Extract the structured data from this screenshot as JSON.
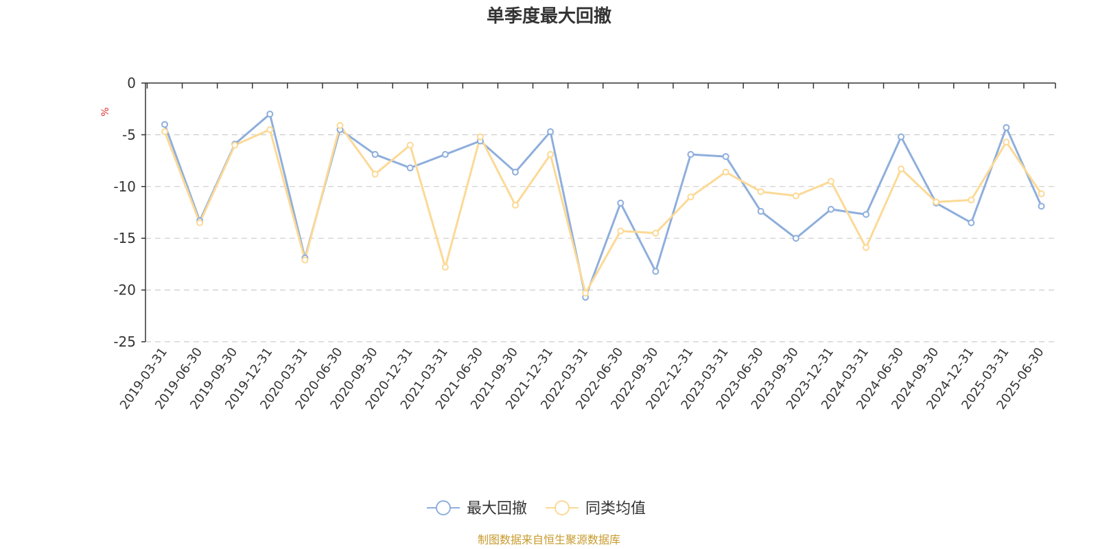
{
  "chart_data": {
    "type": "line",
    "title": "单季度最大回撤",
    "ylabel": "%",
    "ylim": [
      -25,
      0
    ],
    "yticks": [
      0,
      -5,
      -10,
      -15,
      -20,
      -25
    ],
    "grid": true,
    "legend_position": "bottom-center",
    "x": [
      "2019-03-31",
      "2019-06-30",
      "2019-09-30",
      "2019-12-31",
      "2020-03-31",
      "2020-06-30",
      "2020-09-30",
      "2020-12-31",
      "2021-03-31",
      "2021-06-30",
      "2021-09-30",
      "2021-12-31",
      "2022-03-31",
      "2022-06-30",
      "2022-09-30",
      "2022-12-31",
      "2023-03-31",
      "2023-06-30",
      "2023-09-30",
      "2023-12-31",
      "2024-03-31",
      "2024-06-30",
      "2024-09-30",
      "2024-12-31",
      "2025-03-31",
      "2025-06-30"
    ],
    "series": [
      {
        "name": "最大回撤",
        "color": "#8eaedc",
        "values": [
          -4.0,
          -13.3,
          -5.9,
          -3.0,
          -16.9,
          -4.5,
          -6.9,
          -8.2,
          -6.9,
          -5.6,
          -8.6,
          -4.7,
          -20.7,
          -11.6,
          -18.2,
          -6.9,
          -7.1,
          -12.4,
          -15.0,
          -12.2,
          -12.7,
          -5.2,
          -11.6,
          -13.5,
          -4.3,
          -11.9
        ]
      },
      {
        "name": "同类均值",
        "color": "#fcd995",
        "values": [
          -4.7,
          -13.5,
          -6.0,
          -4.5,
          -17.1,
          -4.1,
          -8.8,
          -6.0,
          -17.8,
          -5.2,
          -11.8,
          -6.9,
          -20.3,
          -14.3,
          -14.5,
          -11.0,
          -8.6,
          -10.5,
          -10.9,
          -9.5,
          -15.9,
          -8.3,
          -11.5,
          -11.3,
          -5.7,
          -10.7
        ]
      }
    ],
    "source": "制图数据来自恒生聚源数据库",
    "unit_color": "#e03030",
    "source_color": "#c79a2c"
  }
}
